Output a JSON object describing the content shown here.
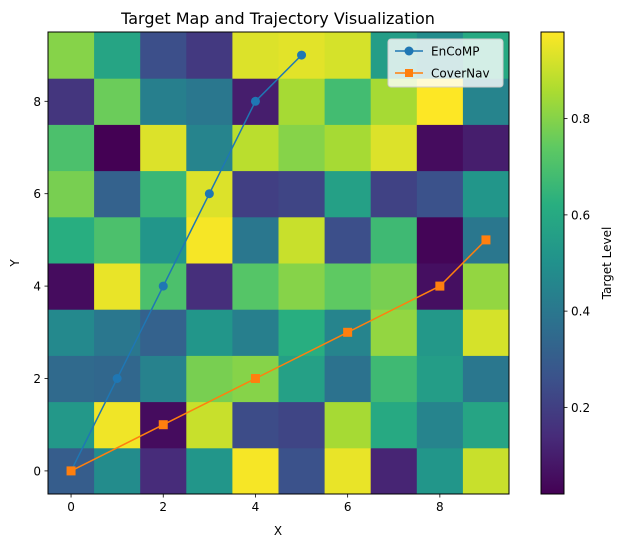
{
  "chart_data": {
    "type": "heatmap",
    "title": "Target Map and Trajectory Visualization",
    "xlabel": "X",
    "ylabel": "Y",
    "xlim": [
      -0.5,
      9.5
    ],
    "ylim": [
      -0.5,
      9.5
    ],
    "xticks": [
      0,
      2,
      4,
      6,
      8
    ],
    "yticks": [
      0,
      2,
      4,
      6,
      8
    ],
    "grid": false,
    "heatmap": {
      "rows_note_y": [
        0,
        1,
        2,
        3,
        4,
        5,
        6,
        7,
        8,
        9
      ],
      "values": [
        [
          0.3,
          0.48,
          0.14,
          0.52,
          0.97,
          0.26,
          0.95,
          0.12,
          0.52,
          0.9
        ],
        [
          0.53,
          0.96,
          0.05,
          0.9,
          0.24,
          0.22,
          0.85,
          0.6,
          0.45,
          0.58
        ],
        [
          0.35,
          0.34,
          0.44,
          0.78,
          0.8,
          0.56,
          0.38,
          0.67,
          0.55,
          0.4
        ],
        [
          0.47,
          0.4,
          0.32,
          0.52,
          0.43,
          0.62,
          0.45,
          0.82,
          0.53,
          0.92
        ],
        [
          0.05,
          0.95,
          0.7,
          0.15,
          0.72,
          0.8,
          0.74,
          0.78,
          0.06,
          0.82
        ],
        [
          0.62,
          0.7,
          0.52,
          0.97,
          0.4,
          0.9,
          0.25,
          0.67,
          0.03,
          0.4
        ],
        [
          0.78,
          0.32,
          0.66,
          0.93,
          0.2,
          0.22,
          0.56,
          0.21,
          0.26,
          0.52
        ],
        [
          0.7,
          0.02,
          0.93,
          0.45,
          0.88,
          0.8,
          0.85,
          0.93,
          0.05,
          0.1
        ],
        [
          0.17,
          0.76,
          0.43,
          0.4,
          0.1,
          0.85,
          0.68,
          0.85,
          0.98,
          0.45
        ],
        [
          0.8,
          0.58,
          0.25,
          0.18,
          0.93,
          0.94,
          0.92,
          0.55,
          0.48,
          0.6
        ]
      ]
    },
    "colorbar": {
      "label": "Target Level",
      "range": [
        0.02,
        0.98
      ],
      "ticks": [
        0.2,
        0.4,
        0.6,
        0.8
      ],
      "tick_labels": [
        "0.2",
        "0.4",
        "0.6",
        "0.8"
      ],
      "colormap": "viridis"
    },
    "series": [
      {
        "name": "EnCoMP",
        "marker": "circle",
        "color": "#1f77b4",
        "x": [
          0,
          1,
          2,
          3,
          4,
          5
        ],
        "y": [
          0,
          2,
          4,
          6,
          8,
          9
        ]
      },
      {
        "name": "CoverNav",
        "marker": "square",
        "color": "#ff7f0e",
        "x": [
          0,
          2,
          4,
          6,
          8,
          9
        ],
        "y": [
          0,
          1,
          2,
          3,
          4,
          5
        ]
      }
    ],
    "legend_position": "top-right"
  }
}
